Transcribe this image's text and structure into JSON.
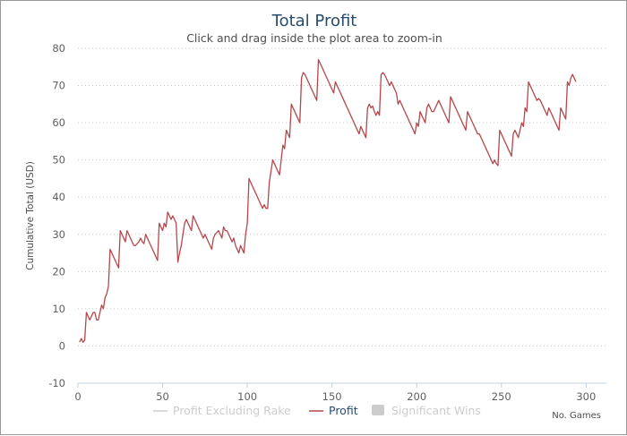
{
  "chart_data": {
    "type": "line",
    "title": "Total Profit",
    "subtitle": "Click and drag inside the plot area to zoom-in",
    "ylabel": "Cumulative Total (USD)",
    "xlabel": "No. Games",
    "xlim": [
      0,
      312
    ],
    "ylim": [
      -10,
      80
    ],
    "xticks": [
      0,
      50,
      100,
      150,
      200,
      250,
      300
    ],
    "yticks": [
      -10,
      0,
      10,
      20,
      30,
      40,
      50,
      60,
      70,
      80
    ],
    "grid": "horizontal dotted",
    "legend_position": "bottom-center",
    "legend": [
      {
        "name": "Profit Excluding Rake",
        "color": "#cccccc",
        "symbol": "line",
        "active": false
      },
      {
        "name": "Profit",
        "color": "#b5474b",
        "symbol": "line",
        "active": true
      },
      {
        "name": "Significant Wins",
        "color": "#cccccc",
        "symbol": "box",
        "active": false
      }
    ],
    "series": [
      {
        "name": "Profit",
        "color": "#b5474b",
        "points": [
          [
            1,
            1
          ],
          [
            2,
            2
          ],
          [
            3,
            1
          ],
          [
            4,
            1.5
          ],
          [
            5,
            9
          ],
          [
            6,
            8
          ],
          [
            7,
            7
          ],
          [
            8,
            8
          ],
          [
            9,
            9
          ],
          [
            10,
            9
          ],
          [
            11,
            7
          ],
          [
            12,
            7
          ],
          [
            13,
            9
          ],
          [
            14,
            11
          ],
          [
            15,
            10
          ],
          [
            16,
            13
          ],
          [
            17,
            14
          ],
          [
            18,
            16
          ],
          [
            19,
            26
          ],
          [
            20,
            25
          ],
          [
            21,
            24
          ],
          [
            22,
            23
          ],
          [
            23,
            22
          ],
          [
            24,
            21
          ],
          [
            25,
            31
          ],
          [
            26,
            30
          ],
          [
            27,
            29
          ],
          [
            28,
            28
          ],
          [
            29,
            31
          ],
          [
            30,
            30
          ],
          [
            31,
            29
          ],
          [
            32,
            28
          ],
          [
            33,
            27
          ],
          [
            34,
            27
          ],
          [
            35,
            27.5
          ],
          [
            36,
            28
          ],
          [
            37,
            29
          ],
          [
            38,
            28
          ],
          [
            39,
            27.5
          ],
          [
            40,
            30
          ],
          [
            41,
            29
          ],
          [
            42,
            28
          ],
          [
            43,
            27
          ],
          [
            44,
            26
          ],
          [
            45,
            25
          ],
          [
            46,
            24
          ],
          [
            47,
            23
          ],
          [
            48,
            33
          ],
          [
            49,
            32
          ],
          [
            50,
            31
          ],
          [
            51,
            33
          ],
          [
            52,
            32
          ],
          [
            53,
            36
          ],
          [
            54,
            35
          ],
          [
            55,
            34
          ],
          [
            56,
            35
          ],
          [
            57,
            34
          ],
          [
            58,
            33
          ],
          [
            59,
            22.5
          ],
          [
            60,
            25
          ],
          [
            61,
            27
          ],
          [
            62,
            30
          ],
          [
            63,
            33
          ],
          [
            64,
            34
          ],
          [
            65,
            33
          ],
          [
            66,
            32
          ],
          [
            67,
            31
          ],
          [
            68,
            35
          ],
          [
            69,
            34
          ],
          [
            70,
            33
          ],
          [
            71,
            32
          ],
          [
            72,
            31
          ],
          [
            73,
            30
          ],
          [
            74,
            29
          ],
          [
            75,
            30
          ],
          [
            76,
            29
          ],
          [
            77,
            28
          ],
          [
            78,
            27
          ],
          [
            79,
            26
          ],
          [
            80,
            29
          ],
          [
            81,
            30
          ],
          [
            82,
            30.5
          ],
          [
            83,
            31
          ],
          [
            84,
            30
          ],
          [
            85,
            29
          ],
          [
            86,
            32
          ],
          [
            87,
            31
          ],
          [
            88,
            31
          ],
          [
            89,
            30
          ],
          [
            90,
            29
          ],
          [
            91,
            28
          ],
          [
            92,
            29
          ],
          [
            93,
            27
          ],
          [
            94,
            26
          ],
          [
            95,
            25
          ],
          [
            96,
            27
          ],
          [
            97,
            26
          ],
          [
            98,
            25
          ],
          [
            99,
            30
          ],
          [
            100,
            33
          ],
          [
            101,
            45
          ],
          [
            102,
            44
          ],
          [
            103,
            43
          ],
          [
            104,
            42
          ],
          [
            105,
            41
          ],
          [
            106,
            40
          ],
          [
            107,
            39
          ],
          [
            108,
            38
          ],
          [
            109,
            37
          ],
          [
            110,
            38
          ],
          [
            111,
            37
          ],
          [
            112,
            37
          ],
          [
            113,
            44
          ],
          [
            114,
            47
          ],
          [
            115,
            50
          ],
          [
            116,
            49
          ],
          [
            117,
            48
          ],
          [
            118,
            47
          ],
          [
            119,
            46
          ],
          [
            120,
            50
          ],
          [
            121,
            54
          ],
          [
            122,
            53
          ],
          [
            123,
            58
          ],
          [
            124,
            57
          ],
          [
            125,
            56
          ],
          [
            126,
            65
          ],
          [
            127,
            64
          ],
          [
            128,
            63
          ],
          [
            129,
            62
          ],
          [
            130,
            61
          ],
          [
            131,
            60
          ],
          [
            132,
            72
          ],
          [
            133,
            73.5
          ],
          [
            134,
            73
          ],
          [
            135,
            72
          ],
          [
            136,
            71
          ],
          [
            137,
            70
          ],
          [
            138,
            69
          ],
          [
            139,
            68
          ],
          [
            140,
            67
          ],
          [
            141,
            66
          ],
          [
            142,
            77
          ],
          [
            143,
            76
          ],
          [
            144,
            75
          ],
          [
            145,
            74
          ],
          [
            146,
            73
          ],
          [
            147,
            72
          ],
          [
            148,
            71
          ],
          [
            149,
            70
          ],
          [
            150,
            69
          ],
          [
            151,
            68
          ],
          [
            152,
            71
          ],
          [
            153,
            70
          ],
          [
            154,
            69
          ],
          [
            155,
            68
          ],
          [
            156,
            67
          ],
          [
            157,
            66
          ],
          [
            158,
            65
          ],
          [
            159,
            64
          ],
          [
            160,
            63
          ],
          [
            161,
            62
          ],
          [
            162,
            61
          ],
          [
            163,
            60
          ],
          [
            164,
            59
          ],
          [
            165,
            58
          ],
          [
            166,
            57
          ],
          [
            167,
            59
          ],
          [
            168,
            58
          ],
          [
            169,
            57
          ],
          [
            170,
            56
          ],
          [
            171,
            64
          ],
          [
            172,
            65
          ],
          [
            173,
            64
          ],
          [
            174,
            64.5
          ],
          [
            175,
            63
          ],
          [
            176,
            62
          ],
          [
            177,
            63
          ],
          [
            178,
            62
          ],
          [
            179,
            73
          ],
          [
            180,
            73.5
          ],
          [
            181,
            73
          ],
          [
            182,
            72
          ],
          [
            183,
            71
          ],
          [
            184,
            70
          ],
          [
            185,
            71
          ],
          [
            186,
            70
          ],
          [
            187,
            69
          ],
          [
            188,
            68
          ],
          [
            189,
            65
          ],
          [
            190,
            66
          ],
          [
            191,
            65
          ],
          [
            192,
            64
          ],
          [
            193,
            63
          ],
          [
            194,
            62
          ],
          [
            195,
            61
          ],
          [
            196,
            60
          ],
          [
            197,
            59
          ],
          [
            198,
            58
          ],
          [
            199,
            57
          ],
          [
            200,
            60
          ],
          [
            201,
            59
          ],
          [
            202,
            63
          ],
          [
            203,
            62
          ],
          [
            204,
            61
          ],
          [
            205,
            60
          ],
          [
            206,
            64
          ],
          [
            207,
            65
          ],
          [
            208,
            64
          ],
          [
            209,
            63
          ],
          [
            210,
            63
          ],
          [
            211,
            64
          ],
          [
            212,
            65
          ],
          [
            213,
            66
          ],
          [
            214,
            65
          ],
          [
            215,
            64
          ],
          [
            216,
            63
          ],
          [
            217,
            62
          ],
          [
            218,
            61
          ],
          [
            219,
            60
          ],
          [
            220,
            67
          ],
          [
            221,
            66
          ],
          [
            222,
            65
          ],
          [
            223,
            64
          ],
          [
            224,
            63
          ],
          [
            225,
            62
          ],
          [
            226,
            61
          ],
          [
            227,
            60
          ],
          [
            228,
            59
          ],
          [
            229,
            58
          ],
          [
            230,
            63
          ],
          [
            231,
            62
          ],
          [
            232,
            61
          ],
          [
            233,
            60
          ],
          [
            234,
            59
          ],
          [
            235,
            58
          ],
          [
            236,
            57
          ],
          [
            237,
            57
          ],
          [
            238,
            56
          ],
          [
            239,
            55
          ],
          [
            240,
            54
          ],
          [
            241,
            53
          ],
          [
            242,
            52
          ],
          [
            243,
            51
          ],
          [
            244,
            50
          ],
          [
            245,
            49
          ],
          [
            246,
            50
          ],
          [
            247,
            49
          ],
          [
            248,
            48.5
          ],
          [
            249,
            58
          ],
          [
            250,
            57
          ],
          [
            251,
            56
          ],
          [
            252,
            55
          ],
          [
            253,
            54
          ],
          [
            254,
            53
          ],
          [
            255,
            52
          ],
          [
            256,
            51
          ],
          [
            257,
            57
          ],
          [
            258,
            58
          ],
          [
            259,
            57
          ],
          [
            260,
            56
          ],
          [
            261,
            58
          ],
          [
            262,
            60
          ],
          [
            263,
            59
          ],
          [
            264,
            64
          ],
          [
            265,
            63
          ],
          [
            266,
            71
          ],
          [
            267,
            70
          ],
          [
            268,
            69
          ],
          [
            269,
            68
          ],
          [
            270,
            67
          ],
          [
            271,
            66
          ],
          [
            272,
            66.5
          ],
          [
            273,
            66
          ],
          [
            274,
            65
          ],
          [
            275,
            64
          ],
          [
            276,
            63
          ],
          [
            277,
            62
          ],
          [
            278,
            64
          ],
          [
            279,
            63
          ],
          [
            280,
            62
          ],
          [
            281,
            61
          ],
          [
            282,
            60
          ],
          [
            283,
            59
          ],
          [
            284,
            58
          ],
          [
            285,
            64
          ],
          [
            286,
            63
          ],
          [
            287,
            62
          ],
          [
            288,
            61
          ],
          [
            289,
            71
          ],
          [
            290,
            70
          ],
          [
            291,
            72
          ],
          [
            292,
            73
          ],
          [
            293,
            72
          ],
          [
            294,
            71
          ]
        ]
      }
    ]
  }
}
